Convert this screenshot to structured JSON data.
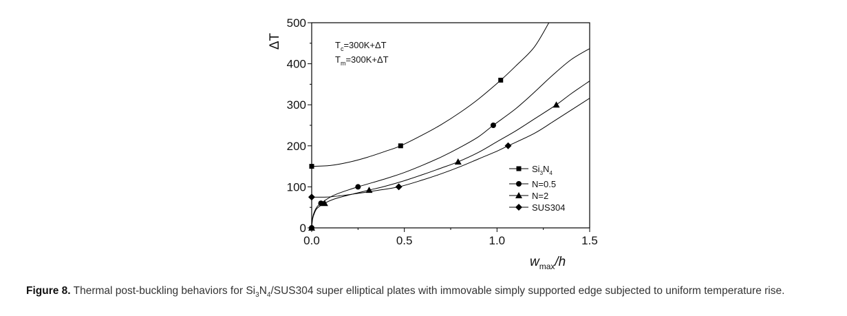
{
  "chart_data": {
    "type": "line",
    "title": "",
    "xlabel": "w_max/h",
    "xlabel_main": "w",
    "xlabel_sub": "max",
    "xlabel_tail": "/h",
    "ylabel": "ΔT",
    "xlim": [
      0,
      1.5
    ],
    "ylim": [
      0,
      500
    ],
    "x_ticks": [
      0.0,
      0.5,
      1.0,
      1.5
    ],
    "x_tick_labels": [
      "0.0",
      "0.5",
      "1.0",
      "1.5"
    ],
    "x_minor_ticks": [
      0.25,
      0.75,
      1.25
    ],
    "y_ticks": [
      0,
      100,
      200,
      300,
      400,
      500
    ],
    "y_tick_labels": [
      "0",
      "100",
      "200",
      "300",
      "400",
      "500"
    ],
    "y_minor_ticks": [
      50,
      150,
      250,
      350,
      450
    ],
    "grid": false,
    "legend_position": "lower-right",
    "annotations": [
      {
        "main": "T",
        "sub": "c",
        "tail": "=300K+ΔT"
      },
      {
        "main": "T",
        "sub": "m",
        "tail": "=300K+ΔT"
      }
    ],
    "series": [
      {
        "name": "Si3N4",
        "legend_main": "Si",
        "legend_sub1": "3",
        "legend_mid": "N",
        "legend_sub2": "4",
        "marker": "square",
        "markers": [
          [
            0.0,
            150
          ],
          [
            0.48,
            200
          ],
          [
            1.02,
            360
          ]
        ],
        "curve": [
          [
            0.0,
            150
          ],
          [
            0.1,
            152
          ],
          [
            0.2,
            160
          ],
          [
            0.3,
            172
          ],
          [
            0.4,
            187
          ],
          [
            0.48,
            200
          ],
          [
            0.6,
            227
          ],
          [
            0.7,
            252
          ],
          [
            0.8,
            281
          ],
          [
            0.9,
            314
          ],
          [
            1.02,
            360
          ],
          [
            1.1,
            394
          ],
          [
            1.2,
            440
          ],
          [
            1.28,
            500
          ]
        ]
      },
      {
        "name": "N=0.5",
        "marker": "circle",
        "markers": [
          [
            0.0,
            0
          ],
          [
            0.05,
            60
          ],
          [
            0.25,
            100
          ],
          [
            0.98,
            250
          ]
        ],
        "curve": [
          [
            0.0,
            0
          ],
          [
            0.005,
            25
          ],
          [
            0.015,
            40
          ],
          [
            0.03,
            52
          ],
          [
            0.05,
            60
          ],
          [
            0.1,
            75
          ],
          [
            0.15,
            85
          ],
          [
            0.25,
            100
          ],
          [
            0.4,
            120
          ],
          [
            0.5,
            135
          ],
          [
            0.6,
            153
          ],
          [
            0.7,
            173
          ],
          [
            0.8,
            196
          ],
          [
            0.9,
            222
          ],
          [
            0.98,
            250
          ],
          [
            1.1,
            290
          ],
          [
            1.2,
            330
          ],
          [
            1.3,
            372
          ],
          [
            1.4,
            410
          ],
          [
            1.5,
            437
          ]
        ]
      },
      {
        "name": "N=2",
        "marker": "triangle",
        "markers": [
          [
            0.0,
            0
          ],
          [
            0.07,
            60
          ],
          [
            0.31,
            92
          ],
          [
            0.79,
            161
          ],
          [
            1.32,
            300
          ]
        ],
        "curve": [
          [
            0.0,
            0
          ],
          [
            0.005,
            22
          ],
          [
            0.015,
            36
          ],
          [
            0.03,
            48
          ],
          [
            0.07,
            60
          ],
          [
            0.12,
            70
          ],
          [
            0.2,
            80
          ],
          [
            0.31,
            92
          ],
          [
            0.4,
            102
          ],
          [
            0.5,
            115
          ],
          [
            0.6,
            130
          ],
          [
            0.7,
            146
          ],
          [
            0.79,
            161
          ],
          [
            0.9,
            184
          ],
          [
            1.0,
            210
          ],
          [
            1.1,
            236
          ],
          [
            1.2,
            265
          ],
          [
            1.32,
            300
          ],
          [
            1.4,
            327
          ],
          [
            1.5,
            358
          ]
        ]
      },
      {
        "name": "SUS304",
        "marker": "diamond",
        "markers": [
          [
            0.0,
            75
          ],
          [
            0.47,
            100
          ],
          [
            1.06,
            200
          ]
        ],
        "curve": [
          [
            0.0,
            75
          ],
          [
            0.08,
            75
          ],
          [
            0.15,
            78
          ],
          [
            0.25,
            84
          ],
          [
            0.35,
            91
          ],
          [
            0.47,
            100
          ],
          [
            0.6,
            117
          ],
          [
            0.7,
            132
          ],
          [
            0.8,
            149
          ],
          [
            0.9,
            168
          ],
          [
            1.0,
            187
          ],
          [
            1.06,
            200
          ],
          [
            1.2,
            230
          ],
          [
            1.3,
            258
          ],
          [
            1.4,
            287
          ],
          [
            1.5,
            316
          ]
        ]
      }
    ]
  },
  "caption": {
    "label": "Figure 8.",
    "text_pre": " Thermal post-buckling behaviors for Si",
    "sub1": "3",
    "text_mid": "N",
    "sub2": "4",
    "text_post": "/SUS304 super elliptical plates with immovable simply supported edge subjected to uniform temperature rise."
  }
}
